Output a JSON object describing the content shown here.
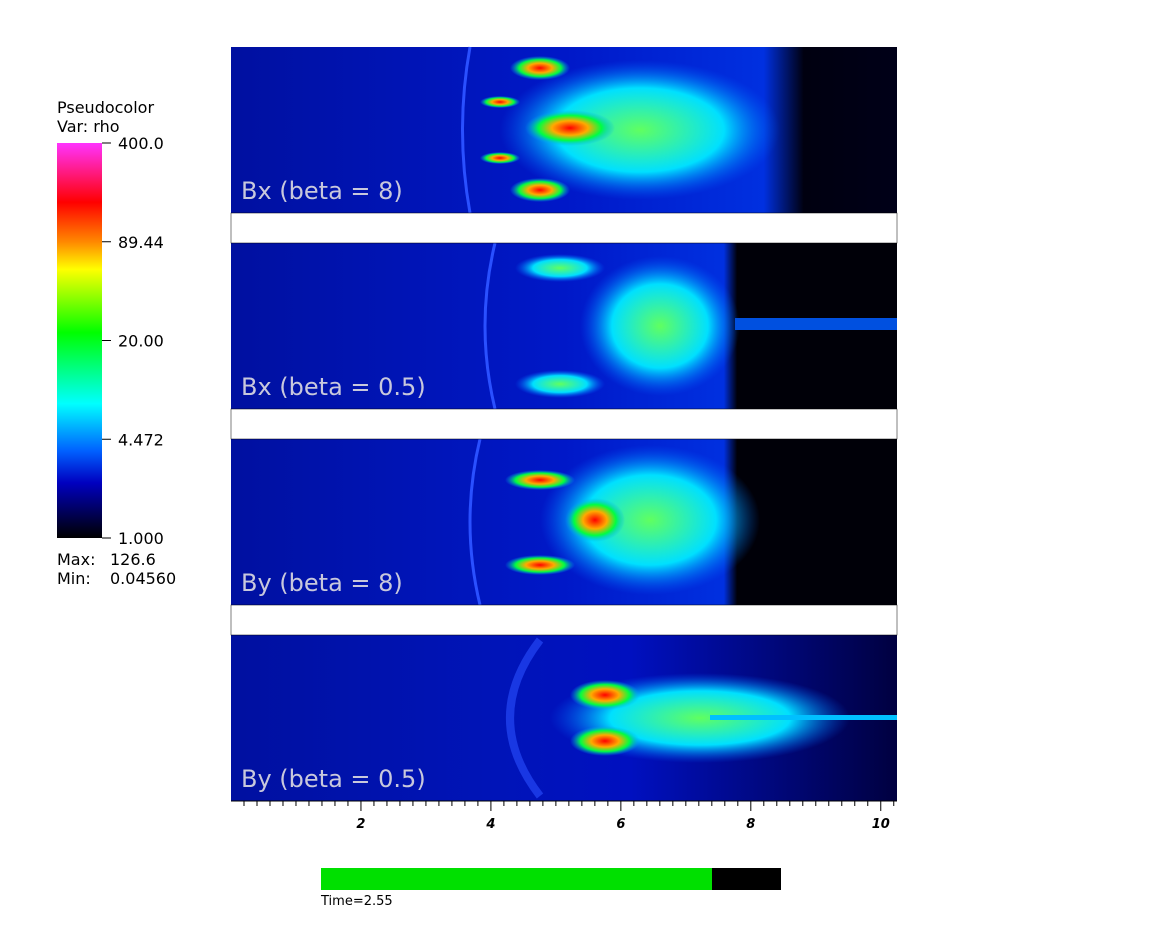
{
  "legend": {
    "title": "Pseudocolor",
    "variable": "Var: rho",
    "range": [
      1,
      400
    ],
    "log": true,
    "ticks": [
      {
        "value": 400,
        "label": "400.0"
      },
      {
        "value": 89.44,
        "label": "89.44"
      },
      {
        "value": 20,
        "label": "20.00"
      },
      {
        "value": 4.472,
        "label": "4.472"
      },
      {
        "value": 1,
        "label": "1.000"
      }
    ],
    "max_label": "Max:",
    "max": 126.6,
    "min_label": "Min:",
    "min": {
      "value": 0.0456,
      "label": "0.04560"
    }
  },
  "panels": [
    {
      "label": "Bx (beta = 8)"
    },
    {
      "label": "Bx (beta = 0.5)"
    },
    {
      "label": "By (beta = 8)"
    },
    {
      "label": "By (beta = 0.5)"
    }
  ],
  "x_axis": {
    "xlim": [
      0,
      10.25
    ],
    "ticks": [
      2,
      4,
      6,
      8,
      10
    ]
  },
  "time": {
    "label": "Time=2.55",
    "progress": 0.85
  }
}
